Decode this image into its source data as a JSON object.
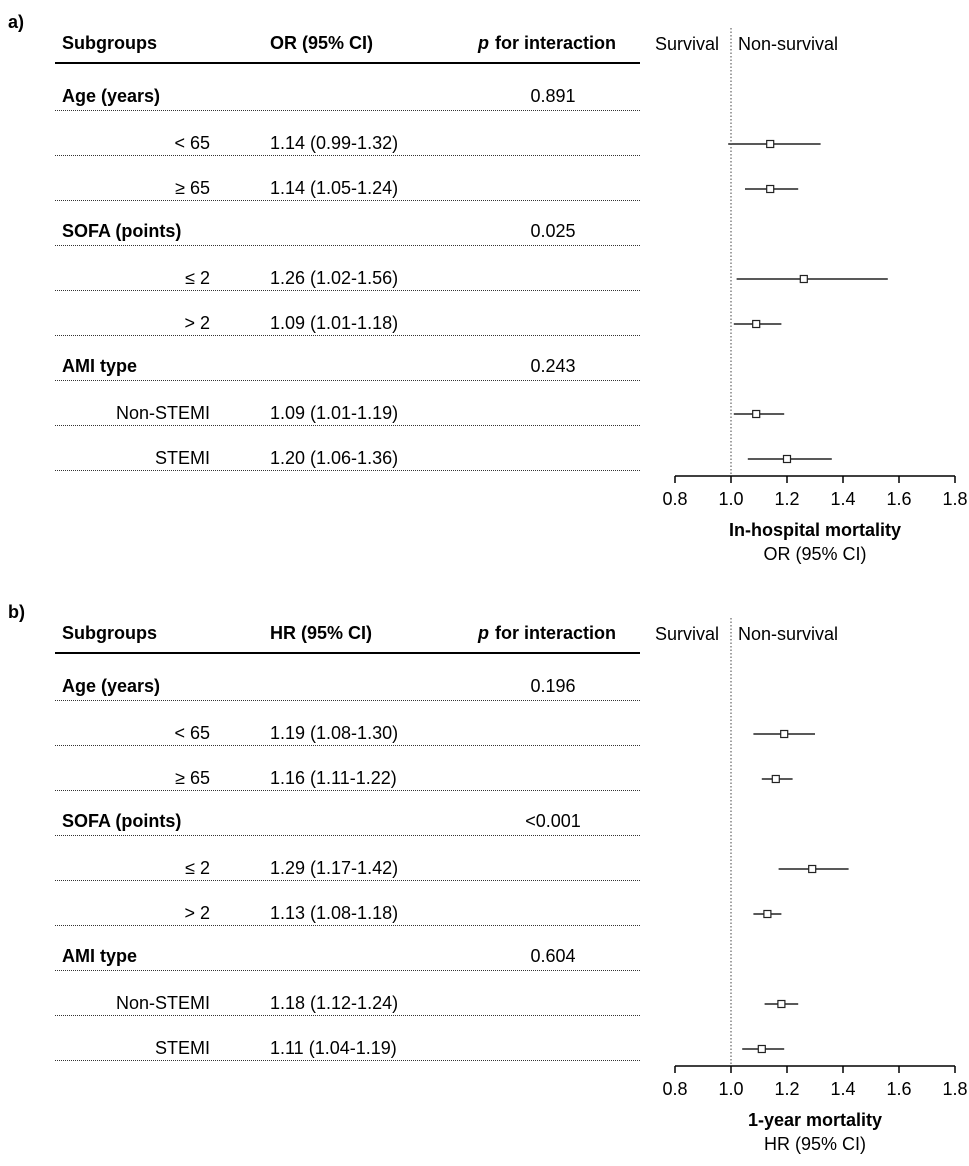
{
  "chart_data": [
    {
      "type": "forest",
      "panel_label": "a)",
      "headers": {
        "subgroups": "Subgroups",
        "estimate": "OR (95% CI)",
        "p_prefix": "p",
        "p_suffix": "for interaction"
      },
      "direction_labels": {
        "left": "Survival",
        "right": "Non-survival"
      },
      "axis": {
        "ticks": [
          "0.8",
          "1.0",
          "1.2",
          "1.4",
          "1.6",
          "1.8"
        ],
        "xlim": [
          0.8,
          1.8
        ],
        "reference": 1.0
      },
      "xlabel": "In-hospital mortality",
      "xlabel_sub": "OR (95% CI)",
      "rows": [
        {
          "kind": "group",
          "label": "Age (years)",
          "p": "0.891"
        },
        {
          "kind": "sub",
          "label": "< 65",
          "text": "1.14 (0.99-1.32)",
          "est": 1.14,
          "lo": 0.99,
          "hi": 1.32
        },
        {
          "kind": "sub",
          "label": "≥ 65",
          "text": "1.14 (1.05-1.24)",
          "est": 1.14,
          "lo": 1.05,
          "hi": 1.24
        },
        {
          "kind": "group",
          "label": "SOFA (points)",
          "p": "0.025"
        },
        {
          "kind": "sub",
          "label": "≤ 2",
          "text": "1.26 (1.02-1.56)",
          "est": 1.26,
          "lo": 1.02,
          "hi": 1.56
        },
        {
          "kind": "sub",
          "label": "> 2",
          "text": "1.09 (1.01-1.18)",
          "est": 1.09,
          "lo": 1.01,
          "hi": 1.18
        },
        {
          "kind": "group",
          "label": "AMI type",
          "p": "0.243"
        },
        {
          "kind": "sub",
          "label": "Non-STEMI",
          "text": "1.09 (1.01-1.19)",
          "est": 1.09,
          "lo": 1.01,
          "hi": 1.19
        },
        {
          "kind": "sub",
          "label": "STEMI",
          "text": "1.20 (1.06-1.36)",
          "est": 1.2,
          "lo": 1.06,
          "hi": 1.36
        }
      ]
    },
    {
      "type": "forest",
      "panel_label": "b)",
      "headers": {
        "subgroups": "Subgroups",
        "estimate": "HR (95% CI)",
        "p_prefix": "p",
        "p_suffix": "for interaction"
      },
      "direction_labels": {
        "left": "Survival",
        "right": "Non-survival"
      },
      "axis": {
        "ticks": [
          "0.8",
          "1.0",
          "1.2",
          "1.4",
          "1.6",
          "1.8"
        ],
        "xlim": [
          0.8,
          1.8
        ],
        "reference": 1.0
      },
      "xlabel": "1-year mortality",
      "xlabel_sub": "HR (95% CI)",
      "rows": [
        {
          "kind": "group",
          "label": "Age (years)",
          "p": "0.196"
        },
        {
          "kind": "sub",
          "label": "< 65",
          "text": "1.19 (1.08-1.30)",
          "est": 1.19,
          "lo": 1.08,
          "hi": 1.3
        },
        {
          "kind": "sub",
          "label": "≥ 65",
          "text": "1.16 (1.11-1.22)",
          "est": 1.16,
          "lo": 1.11,
          "hi": 1.22
        },
        {
          "kind": "group",
          "label": "SOFA (points)",
          "p": "<0.001"
        },
        {
          "kind": "sub",
          "label": "≤ 2",
          "text": "1.29 (1.17-1.42)",
          "est": 1.29,
          "lo": 1.17,
          "hi": 1.42
        },
        {
          "kind": "sub",
          "label": "> 2",
          "text": "1.13 (1.08-1.18)",
          "est": 1.13,
          "lo": 1.08,
          "hi": 1.18
        },
        {
          "kind": "group",
          "label": "AMI type",
          "p": "0.604"
        },
        {
          "kind": "sub",
          "label": "Non-STEMI",
          "text": "1.18 (1.12-1.24)",
          "est": 1.18,
          "lo": 1.12,
          "hi": 1.24
        },
        {
          "kind": "sub",
          "label": "STEMI",
          "text": "1.11 (1.04-1.19)",
          "est": 1.11,
          "lo": 1.04,
          "hi": 1.19
        }
      ]
    }
  ]
}
